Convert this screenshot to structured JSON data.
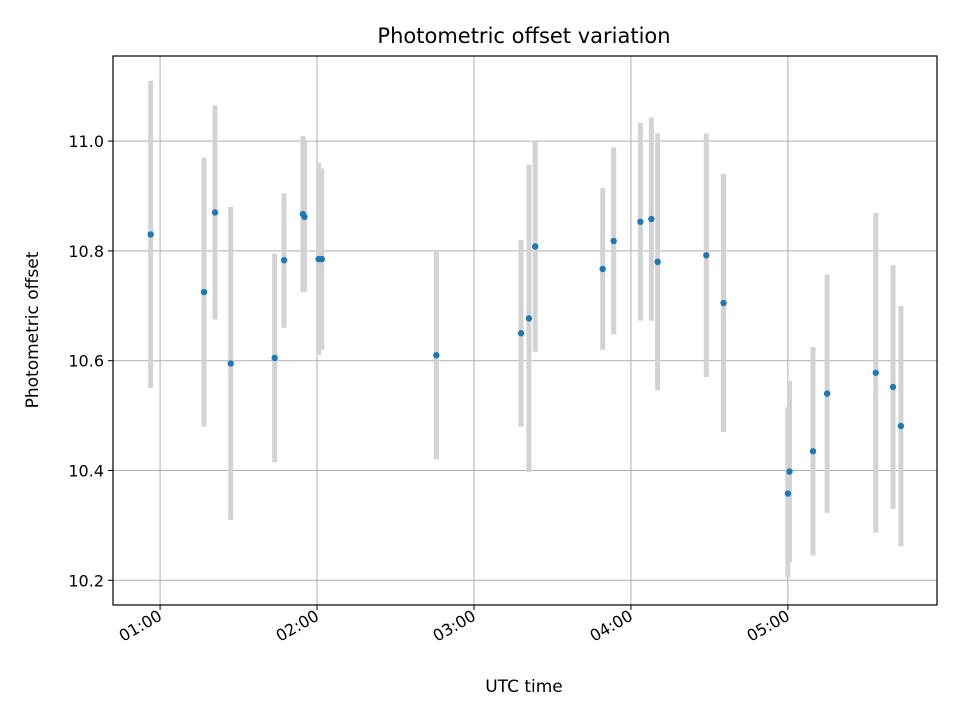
{
  "chart_data": {
    "type": "scatter",
    "title": "Photometric offset variation",
    "xlabel": "UTC time",
    "ylabel": "Photometric offset",
    "xlim": [
      0.7,
      5.95
    ],
    "ylim": [
      10.155,
      11.155
    ],
    "grid": true,
    "x_ticks": [
      {
        "value": 1.0,
        "label": "01:00"
      },
      {
        "value": 2.0,
        "label": "02:00"
      },
      {
        "value": 3.0,
        "label": "03:00"
      },
      {
        "value": 4.0,
        "label": "04:00"
      },
      {
        "value": 5.0,
        "label": "05:00"
      }
    ],
    "y_ticks": [
      {
        "value": 10.2,
        "label": "10.2"
      },
      {
        "value": 10.4,
        "label": "10.4"
      },
      {
        "value": 10.6,
        "label": "10.6"
      },
      {
        "value": 10.8,
        "label": "10.8"
      },
      {
        "value": 11.0,
        "label": "11.0"
      }
    ],
    "marker_color": "#1f77b4",
    "errorbar_color": "#d3d3d3",
    "points": [
      {
        "x": 0.94,
        "y": 10.83,
        "lo": 10.55,
        "hi": 11.11
      },
      {
        "x": 1.28,
        "y": 10.725,
        "lo": 10.48,
        "hi": 10.97
      },
      {
        "x": 1.35,
        "y": 10.87,
        "lo": 10.675,
        "hi": 11.065
      },
      {
        "x": 1.45,
        "y": 10.595,
        "lo": 10.31,
        "hi": 10.88
      },
      {
        "x": 1.73,
        "y": 10.605,
        "lo": 10.415,
        "hi": 10.795
      },
      {
        "x": 1.79,
        "y": 10.783,
        "lo": 10.66,
        "hi": 10.905
      },
      {
        "x": 1.91,
        "y": 10.867,
        "lo": 10.725,
        "hi": 11.009
      },
      {
        "x": 1.92,
        "y": 10.862,
        "lo": 10.725,
        "hi": 10.999
      },
      {
        "x": 2.01,
        "y": 10.785,
        "lo": 10.61,
        "hi": 10.96
      },
      {
        "x": 2.03,
        "y": 10.785,
        "lo": 10.62,
        "hi": 10.95
      },
      {
        "x": 2.76,
        "y": 10.61,
        "lo": 10.42,
        "hi": 10.8
      },
      {
        "x": 3.3,
        "y": 10.65,
        "lo": 10.48,
        "hi": 10.82
      },
      {
        "x": 3.35,
        "y": 10.677,
        "lo": 10.397,
        "hi": 10.957
      },
      {
        "x": 3.39,
        "y": 10.808,
        "lo": 10.616,
        "hi": 11.0
      },
      {
        "x": 3.82,
        "y": 10.767,
        "lo": 10.62,
        "hi": 10.914
      },
      {
        "x": 3.89,
        "y": 10.818,
        "lo": 10.648,
        "hi": 10.988
      },
      {
        "x": 4.06,
        "y": 10.853,
        "lo": 10.673,
        "hi": 11.033
      },
      {
        "x": 4.13,
        "y": 10.858,
        "lo": 10.673,
        "hi": 11.043
      },
      {
        "x": 4.17,
        "y": 10.78,
        "lo": 10.546,
        "hi": 11.014
      },
      {
        "x": 4.48,
        "y": 10.792,
        "lo": 10.57,
        "hi": 11.014
      },
      {
        "x": 4.59,
        "y": 10.705,
        "lo": 10.47,
        "hi": 10.94
      },
      {
        "x": 5.0,
        "y": 10.358,
        "lo": 10.205,
        "hi": 10.515
      },
      {
        "x": 5.01,
        "y": 10.398,
        "lo": 10.233,
        "hi": 10.563
      },
      {
        "x": 5.16,
        "y": 10.435,
        "lo": 10.245,
        "hi": 10.625
      },
      {
        "x": 5.25,
        "y": 10.54,
        "lo": 10.323,
        "hi": 10.757
      },
      {
        "x": 5.56,
        "y": 10.578,
        "lo": 10.287,
        "hi": 10.869
      },
      {
        "x": 5.67,
        "y": 10.552,
        "lo": 10.33,
        "hi": 10.774
      },
      {
        "x": 5.72,
        "y": 10.481,
        "lo": 10.262,
        "hi": 10.7
      }
    ]
  }
}
